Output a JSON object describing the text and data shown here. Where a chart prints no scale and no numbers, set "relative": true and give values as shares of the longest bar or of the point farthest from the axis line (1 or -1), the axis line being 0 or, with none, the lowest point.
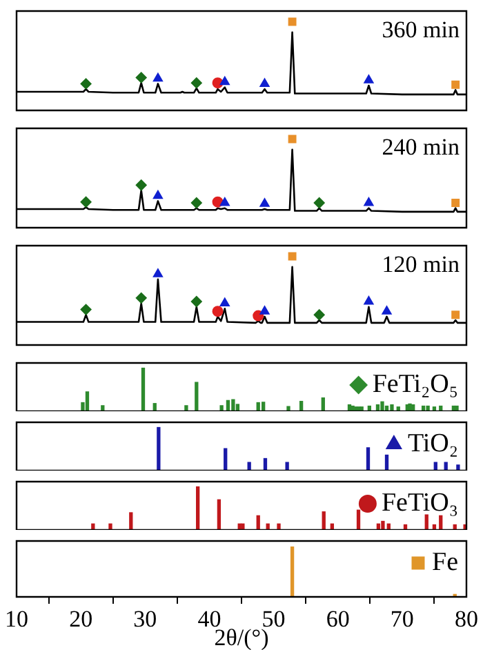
{
  "chart_data": [
    {
      "type": "line",
      "relative": true,
      "xlim": [
        10,
        80
      ],
      "xticks": [
        10,
        20,
        30,
        40,
        50,
        60,
        70,
        80
      ],
      "tick_labels": false,
      "marker": "none",
      "annotations": [
        "360 min"
      ],
      "series": [
        {
          "color": "#000000",
          "x": [
            10,
            15,
            19,
            20.4,
            20.8,
            21.2,
            25,
            29,
            29.4,
            29.8,
            31.6,
            32.0,
            32.5,
            35.5,
            35.8,
            36.1,
            37.6,
            38.0,
            38.4,
            41.0,
            41.3,
            41.8,
            42.4,
            42.8,
            48.2,
            48.6,
            49.0,
            52.5,
            52.9,
            53.3,
            57,
            61,
            64.4,
            64.8,
            65.2,
            70,
            78,
            78.3,
            78.6,
            80
          ],
          "values": [
            0.21,
            0.21,
            0.21,
            0.21,
            0.24,
            0.21,
            0.2,
            0.2,
            0.31,
            0.2,
            0.2,
            0.3,
            0.2,
            0.2,
            0.21,
            0.2,
            0.2,
            0.25,
            0.2,
            0.2,
            0.24,
            0.21,
            0.26,
            0.2,
            0.2,
            0.24,
            0.2,
            0.2,
            0.88,
            0.19,
            0.19,
            0.19,
            0.19,
            0.28,
            0.19,
            0.18,
            0.18,
            0.23,
            0.18,
            0.18
          ]
        },
        {
          "type": "scatter",
          "color": "#1a6e1a",
          "marker": "diamond",
          "x": [
            20.8,
            29.4,
            38.0
          ],
          "values": [
            0.3,
            0.37,
            0.31
          ]
        },
        {
          "type": "scatter",
          "color": "#1020d0",
          "marker": "triangle",
          "x": [
            32.0,
            42.4,
            48.6,
            64.8
          ],
          "values": [
            0.36,
            0.32,
            0.3,
            0.34
          ]
        },
        {
          "type": "scatter",
          "color": "#e02020",
          "marker": "circle",
          "x": [
            41.3
          ],
          "values": [
            0.31
          ]
        },
        {
          "type": "scatter",
          "color": "#e8902a",
          "marker": "square",
          "x": [
            52.9,
            78.3
          ],
          "values": [
            1,
            0.29
          ]
        }
      ]
    },
    {
      "type": "line",
      "relative": true,
      "xlim": [
        10,
        80
      ],
      "xticks": [
        10,
        20,
        30,
        40,
        50,
        60,
        70,
        80
      ],
      "tick_labels": false,
      "marker": "none",
      "annotations": [
        "240 min"
      ],
      "series": [
        {
          "color": "#000000",
          "x": [
            10,
            15,
            20.4,
            20.8,
            21.2,
            25,
            29,
            29.4,
            29.8,
            31.6,
            32.0,
            32.5,
            37.6,
            38.0,
            38.4,
            41.0,
            41.3,
            41.8,
            42.4,
            42.8,
            48.2,
            48.6,
            49.0,
            52.5,
            52.9,
            53.3,
            56.7,
            57.1,
            57.5,
            61,
            64.4,
            64.8,
            65.2,
            70,
            78,
            78.3,
            78.6,
            80
          ],
          "values": [
            0.21,
            0.21,
            0.21,
            0.23,
            0.21,
            0.2,
            0.2,
            0.42,
            0.2,
            0.2,
            0.3,
            0.2,
            0.2,
            0.22,
            0.2,
            0.2,
            0.22,
            0.21,
            0.22,
            0.2,
            0.2,
            0.21,
            0.2,
            0.2,
            0.88,
            0.19,
            0.19,
            0.22,
            0.19,
            0.19,
            0.19,
            0.22,
            0.19,
            0.18,
            0.18,
            0.22,
            0.18,
            0.18
          ]
        },
        {
          "type": "scatter",
          "color": "#1a6e1a",
          "marker": "diamond",
          "x": [
            20.8,
            29.4,
            38.0,
            57.1
          ],
          "values": [
            0.29,
            0.48,
            0.28,
            0.28
          ]
        },
        {
          "type": "scatter",
          "color": "#1020d0",
          "marker": "triangle",
          "x": [
            32.0,
            42.4,
            48.6,
            64.8
          ],
          "values": [
            0.36,
            0.28,
            0.27,
            0.28
          ]
        },
        {
          "type": "scatter",
          "color": "#e02020",
          "marker": "circle",
          "x": [
            41.3
          ],
          "values": [
            0.29
          ]
        },
        {
          "type": "scatter",
          "color": "#e8902a",
          "marker": "square",
          "x": [
            52.9,
            78.3
          ],
          "values": [
            1,
            0.28
          ]
        }
      ]
    },
    {
      "type": "line",
      "relative": true,
      "xlim": [
        10,
        80
      ],
      "xticks": [
        10,
        20,
        30,
        40,
        50,
        60,
        70,
        80
      ],
      "tick_labels": false,
      "marker": "none",
      "annotations": [
        "120 min"
      ],
      "series": [
        {
          "color": "#000000",
          "x": [
            10,
            15,
            20.4,
            20.8,
            21.2,
            25,
            29,
            29.4,
            29.8,
            31.6,
            32.0,
            32.5,
            37.6,
            38.0,
            38.4,
            41.0,
            41.3,
            41.8,
            42.4,
            42.8,
            47.2,
            47.6,
            48.0,
            48.2,
            48.6,
            49.0,
            52.5,
            52.9,
            53.3,
            56.7,
            57.1,
            57.5,
            61,
            64.4,
            64.8,
            65.2,
            67.2,
            67.6,
            68.0,
            73,
            78,
            78.3,
            78.6,
            80
          ],
          "values": [
            0.26,
            0.26,
            0.26,
            0.34,
            0.26,
            0.26,
            0.26,
            0.47,
            0.26,
            0.26,
            0.74,
            0.26,
            0.26,
            0.43,
            0.26,
            0.26,
            0.32,
            0.27,
            0.41,
            0.26,
            0.25,
            0.27,
            0.25,
            0.25,
            0.32,
            0.25,
            0.25,
            0.88,
            0.25,
            0.25,
            0.28,
            0.25,
            0.25,
            0.25,
            0.43,
            0.25,
            0.25,
            0.32,
            0.25,
            0.25,
            0.25,
            0.28,
            0.25,
            0.25
          ]
        },
        {
          "type": "scatter",
          "color": "#1a6e1a",
          "marker": "diamond",
          "x": [
            20.8,
            29.4,
            38.0,
            57.1
          ],
          "values": [
            0.4,
            0.53,
            0.49,
            0.34
          ]
        },
        {
          "type": "scatter",
          "color": "#1020d0",
          "marker": "triangle",
          "x": [
            32.0,
            42.4,
            48.6,
            64.8,
            67.6
          ],
          "values": [
            0.8,
            0.47,
            0.38,
            0.49,
            0.38
          ]
        },
        {
          "type": "scatter",
          "color": "#e02020",
          "marker": "circle",
          "x": [
            41.3,
            47.6
          ],
          "values": [
            0.38,
            0.33
          ]
        },
        {
          "type": "scatter",
          "color": "#e8902a",
          "marker": "square",
          "x": [
            52.9,
            78.3
          ],
          "values": [
            1,
            0.34
          ]
        }
      ]
    },
    {
      "type": "bar",
      "relative": true,
      "xlim": [
        10,
        80
      ],
      "xticks": [
        10,
        20,
        30,
        40,
        50,
        60,
        70,
        80
      ],
      "tick_labels": false,
      "legend": "top right",
      "series": [
        {
          "name": "FeTi₂O₅",
          "color": "#2e8b2e",
          "marker": "diamond",
          "x": [
            20.3,
            21.0,
            23.4,
            29.7,
            31.5,
            36.4,
            38.0,
            41.9,
            42.9,
            43.7,
            44.4,
            47.6,
            48.4,
            52.3,
            54.3,
            57.7,
            61.8,
            62.3,
            62.8,
            63.3,
            63.7,
            64.9,
            66.2,
            66.9,
            67.6,
            68.4,
            69.4,
            70.8,
            71.2,
            71.7,
            73.3,
            74.0,
            75.0,
            76.0,
            78.0,
            78.5
          ],
          "values": [
            0.2,
            0.45,
            0.13,
            1,
            0.18,
            0.13,
            0.67,
            0.13,
            0.25,
            0.27,
            0.16,
            0.2,
            0.21,
            0.11,
            0.23,
            0.31,
            0.15,
            0.12,
            0.1,
            0.1,
            0.1,
            0.12,
            0.15,
            0.22,
            0.12,
            0.15,
            0.1,
            0.15,
            0.17,
            0.15,
            0.12,
            0.12,
            0.1,
            0.12,
            0.12,
            0.12
          ]
        }
      ]
    },
    {
      "type": "bar",
      "relative": true,
      "xlim": [
        10,
        80
      ],
      "xticks": [
        10,
        20,
        30,
        40,
        50,
        60,
        70,
        80
      ],
      "tick_labels": false,
      "legend": "top right",
      "series": [
        {
          "name": "TiO₂",
          "color": "#1a1aa8",
          "marker": "triangle",
          "x": [
            32.1,
            42.5,
            46.2,
            48.7,
            52.1,
            64.7,
            67.6,
            75.2,
            76.8,
            78.7
          ],
          "values": [
            1,
            0.51,
            0.19,
            0.28,
            0.19,
            0.53,
            0.36,
            0.19,
            0.19,
            0.13
          ]
        }
      ]
    },
    {
      "type": "bar",
      "relative": true,
      "xlim": [
        10,
        80
      ],
      "xticks": [
        10,
        20,
        30,
        40,
        50,
        60,
        70,
        80
      ],
      "tick_labels": false,
      "legend": "top right",
      "series": [
        {
          "name": "FeTiO₃",
          "color": "#c0181c",
          "marker": "circle",
          "x": [
            21.9,
            24.6,
            27.8,
            38.2,
            41.5,
            44.7,
            45.2,
            47.6,
            49.1,
            50.8,
            57.8,
            59.1,
            63.2,
            66.3,
            67.0,
            67.9,
            70.5,
            73.8,
            75.0,
            76.0,
            78.2,
            79.8
          ],
          "values": [
            0.14,
            0.14,
            0.4,
            1,
            0.7,
            0.14,
            0.14,
            0.33,
            0.14,
            0.14,
            0.42,
            0.14,
            0.46,
            0.14,
            0.2,
            0.14,
            0.12,
            0.35,
            0.12,
            0.33,
            0.12,
            0.12
          ]
        }
      ]
    },
    {
      "type": "bar",
      "relative": true,
      "xlim": [
        10,
        80
      ],
      "xticks": [
        10,
        20,
        30,
        40,
        50,
        60,
        70,
        80
      ],
      "tick_labels": "x",
      "legend": "top right",
      "xlabel": "2θ/(°)",
      "series": [
        {
          "name": "Fe",
          "color": "#e0962a",
          "marker": "square",
          "x": [
            52.9,
            78.2
          ],
          "values": [
            1,
            0.05
          ]
        }
      ]
    }
  ]
}
